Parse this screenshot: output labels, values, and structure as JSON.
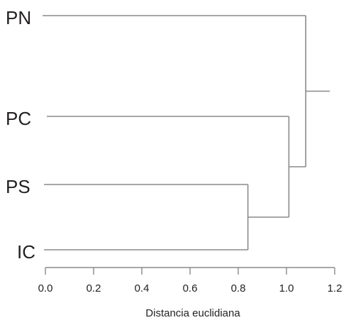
{
  "chart_data": {
    "type": "dendrogram",
    "title": "",
    "xlabel": "Distancia euclidiana",
    "ylabel": "",
    "xlim": [
      0.0,
      1.2
    ],
    "x_ticks": [
      "0.0",
      "0.2",
      "0.4",
      "0.6",
      "0.8",
      "1.0",
      "1.2"
    ],
    "leaves": [
      "PN",
      "PC",
      "PS",
      "IC"
    ],
    "merges": [
      {
        "left": "PS",
        "right": "IC",
        "height": 0.84
      },
      {
        "left": "PC",
        "right": "PS+IC",
        "height": 1.01
      },
      {
        "left": "PN",
        "right": "PC+PS+IC",
        "height": 1.08
      }
    ],
    "root_extends_to": 1.18
  }
}
